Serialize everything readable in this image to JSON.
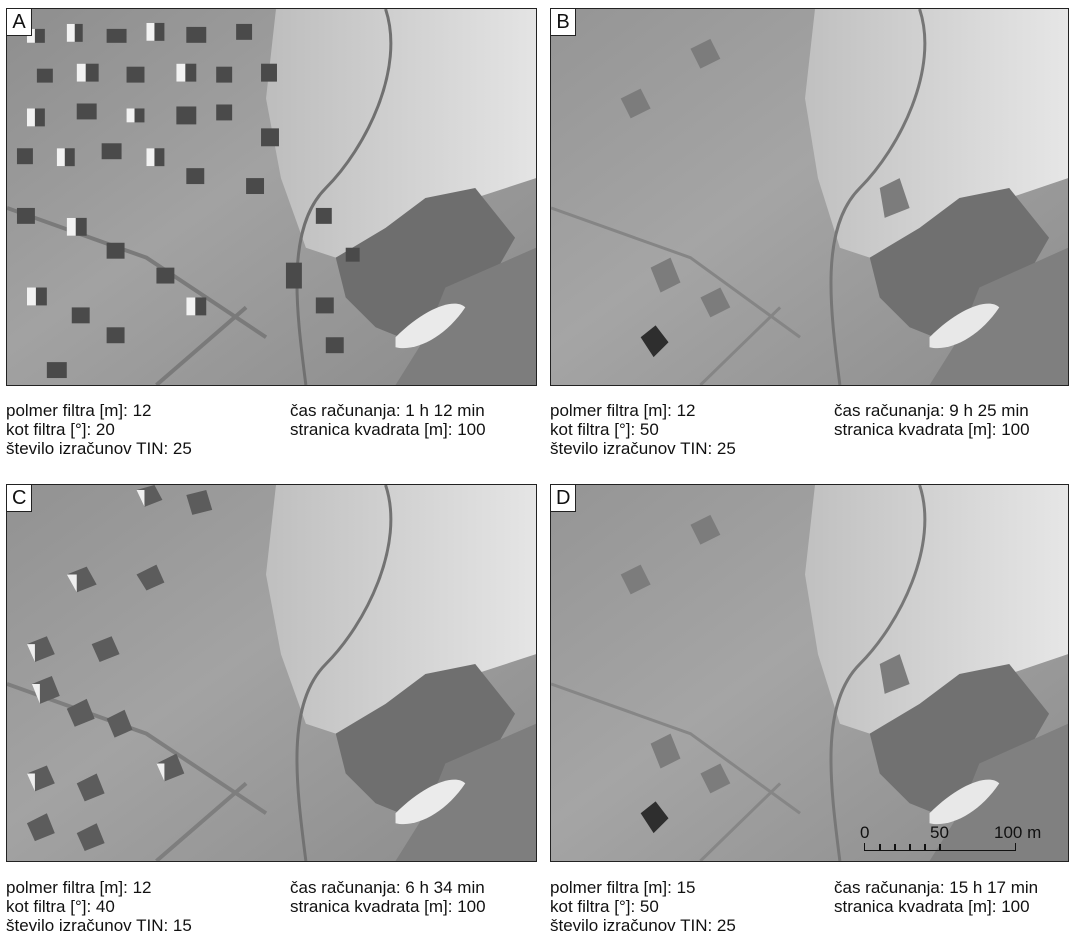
{
  "panels": [
    {
      "letter": "A",
      "caption_left": [
        "polmer filtra [m]: 12",
        "kot filtra [°]: 20",
        "število izračunov TIN: 25"
      ],
      "caption_right": [
        "čas računanja:  1 h 12 min",
        "stranica kvadrata [m]: 100"
      ]
    },
    {
      "letter": "B",
      "caption_left": [
        "polmer filtra [m]: 12",
        "kot filtra [°]: 50",
        "število izračunov TIN: 25"
      ],
      "caption_right": [
        "čas računanja:  9 h 25 min",
        "stranica kvadrata [m]: 100"
      ]
    },
    {
      "letter": "C",
      "caption_left": [
        "polmer filtra [m]: 12",
        "kot filtra [°]: 40",
        "število izračunov TIN: 15"
      ],
      "caption_right": [
        "čas računanja: 6 h 34 min",
        "stranica kvadrata [m]: 100"
      ]
    },
    {
      "letter": "D",
      "caption_left": [
        "polmer filtra [m]: 15",
        "kot filtra [°]: 50",
        "število izračunov TIN: 25"
      ],
      "caption_right": [
        "čas računanja:  15 h 17 min",
        "stranica kvadrata [m]: 100"
      ]
    }
  ],
  "scalebar": {
    "labels": [
      "0",
      "50",
      "100 m"
    ]
  },
  "colors": {
    "hillshade_dark": "#5a5a5a",
    "hillshade_mid": "#9c9c9c",
    "hillshade_light": "#dcdcdc"
  }
}
